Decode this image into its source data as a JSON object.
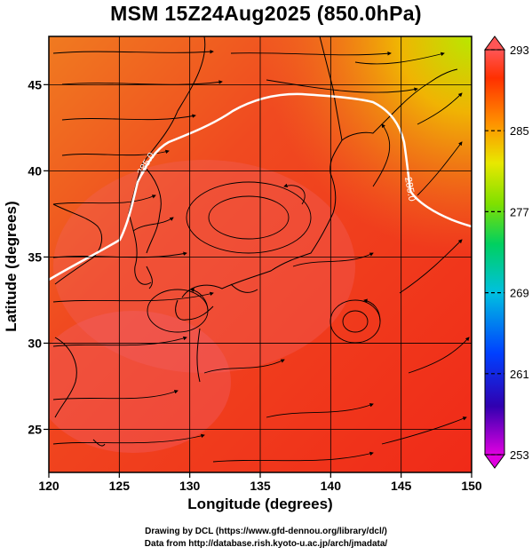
{
  "title": "MSM 15Z24Aug2025 (850.0hPa)",
  "axes": {
    "xlabel": "Longitude (degrees)",
    "ylabel": "Latitude  (degrees)",
    "xlim": [
      120,
      150
    ],
    "ylim": [
      22.5,
      47.8
    ],
    "xticks": [
      "120",
      "125",
      "130",
      "135",
      "140",
      "145",
      "150"
    ],
    "yticks": [
      "25",
      "30",
      "35",
      "40",
      "45"
    ]
  },
  "colorbar": {
    "labels": [
      "293",
      "285",
      "277",
      "269",
      "261",
      "253"
    ],
    "min": 253,
    "max": 293,
    "colors": [
      "#e000e0",
      "#3000c0",
      "#0040ff",
      "#00c0e0",
      "#00d060",
      "#80e000",
      "#e8e800",
      "#ff9000",
      "#ff3000",
      "#ff5555"
    ]
  },
  "contour_label": "285.0",
  "credits": {
    "line1": "Drawing by DCL (https://www.gfd-dennou.org/library/dcl/)",
    "line2": "Data from http://database.rish.kyoto-u.ac.jp/arch/jmadata/"
  }
}
